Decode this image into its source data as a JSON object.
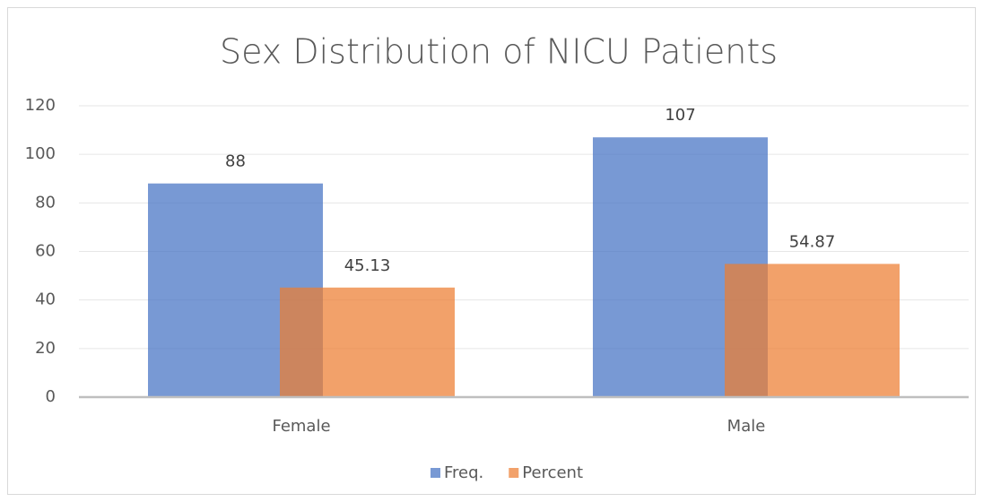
{
  "chart_data": {
    "type": "bar",
    "title": "Sex Distribution of NICU Patients",
    "categories": [
      "Female",
      "Male"
    ],
    "series": [
      {
        "name": "Freq.",
        "color": "#4472c4",
        "values": [
          88,
          107
        ]
      },
      {
        "name": "Percent",
        "color": "#ed7d31",
        "values": [
          45.13,
          54.87
        ]
      }
    ],
    "ylim": [
      0,
      120
    ],
    "yticks": [
      0,
      20,
      40,
      60,
      80,
      100,
      120
    ],
    "grid": true,
    "legend": "bottom"
  }
}
